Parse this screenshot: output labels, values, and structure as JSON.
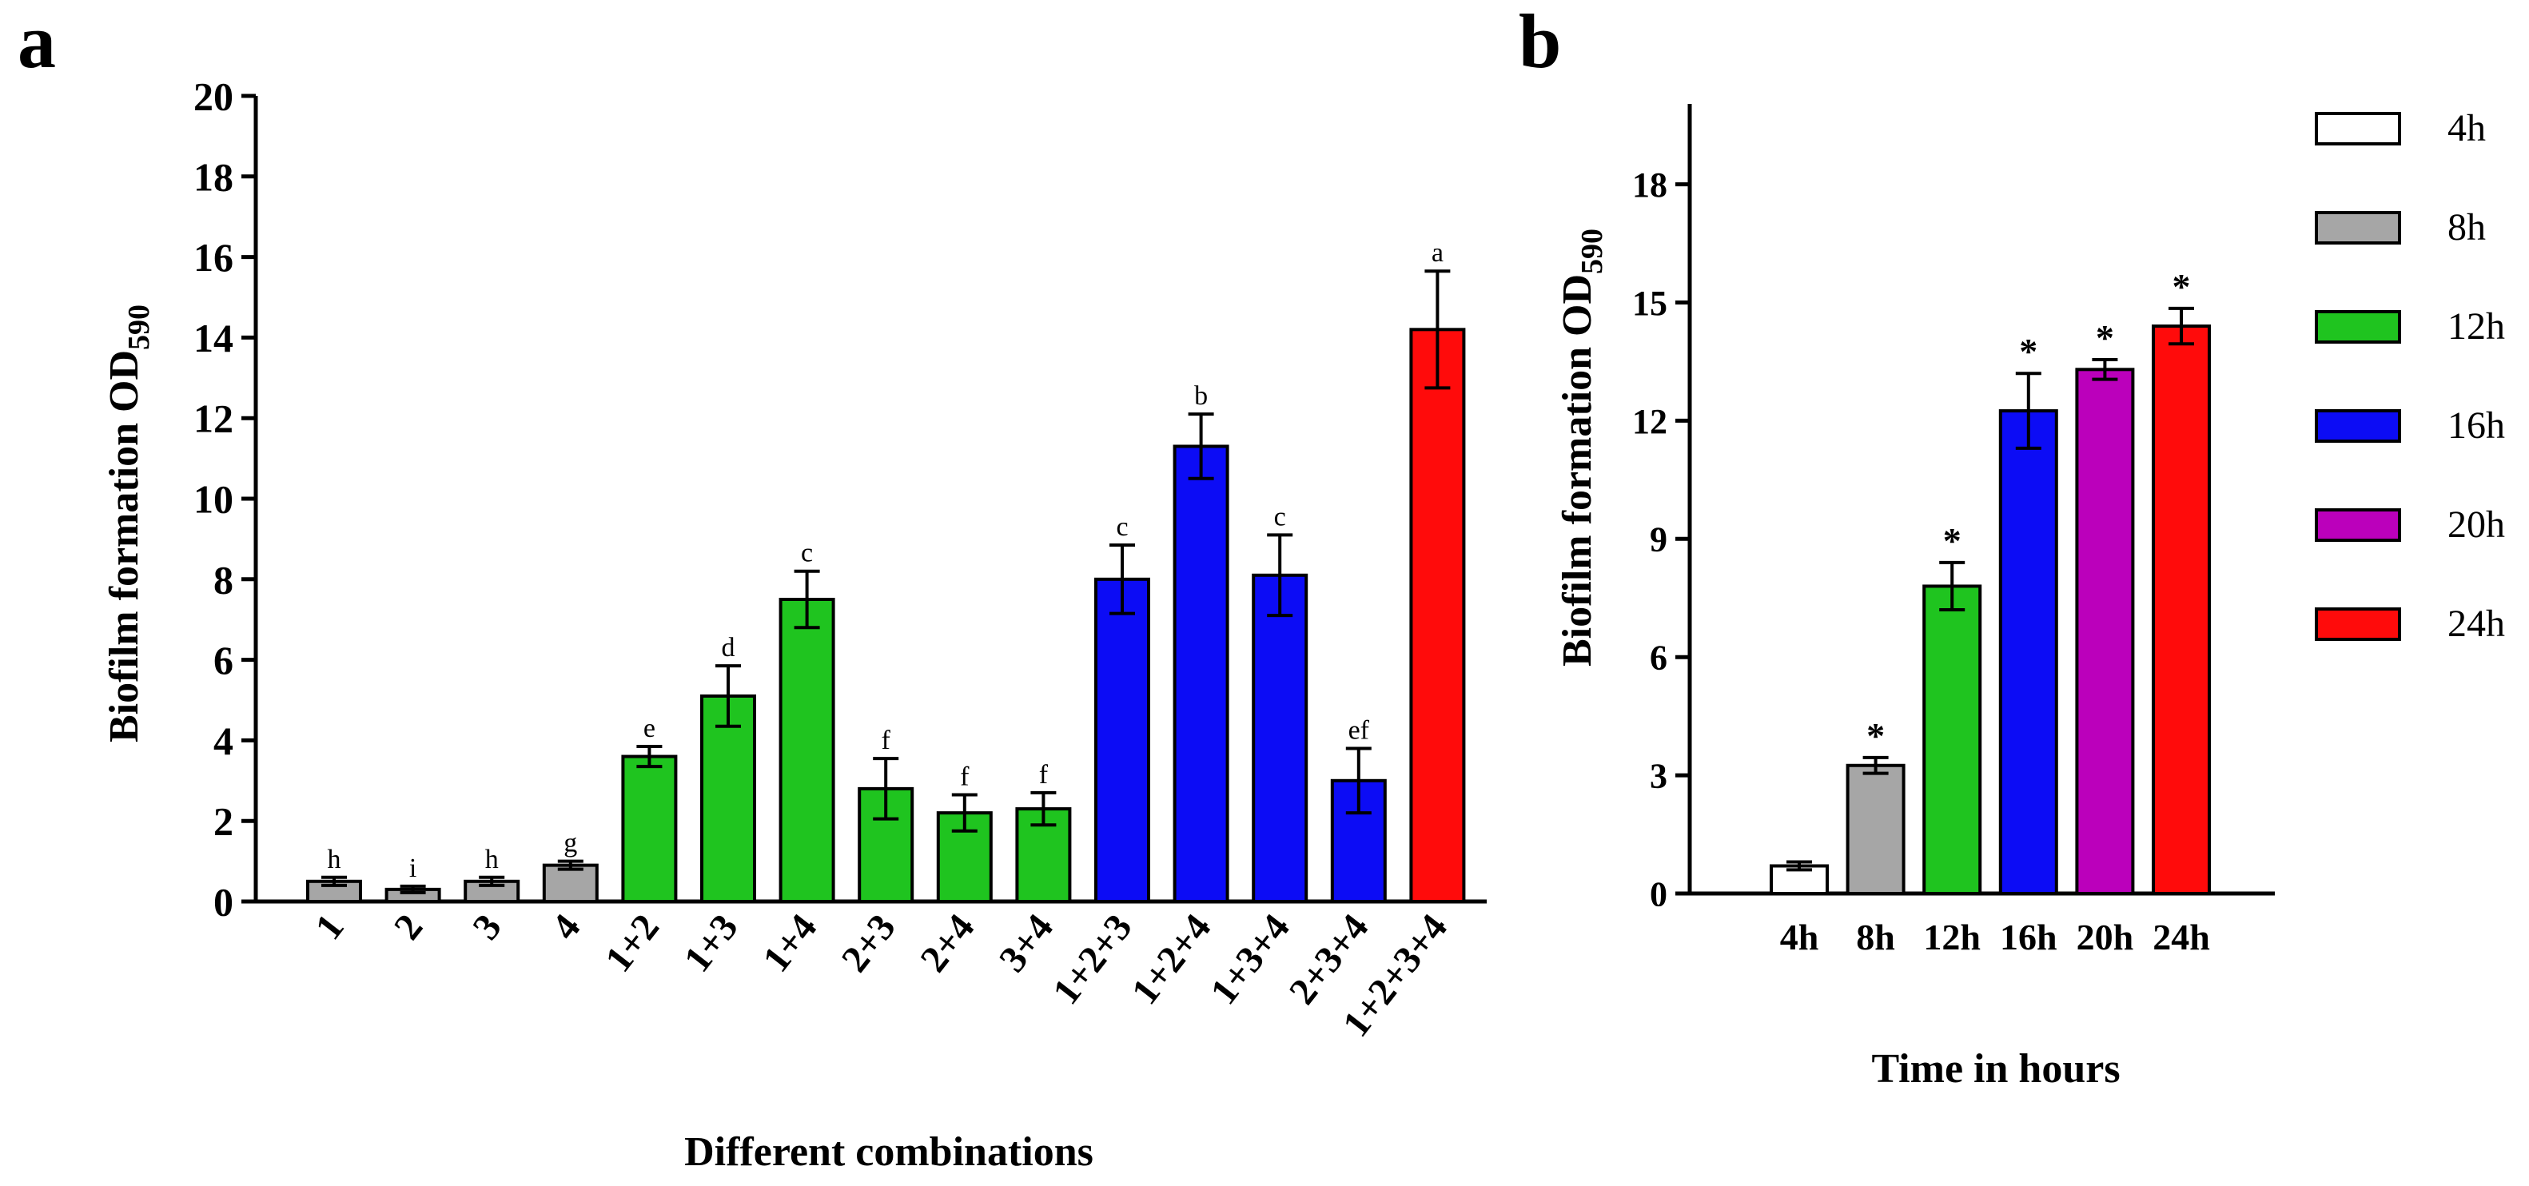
{
  "chart_data": [
    {
      "panel": "a",
      "type": "bar",
      "ylabel_main": "Biofilm formation OD",
      "ylabel_sub": "590",
      "xlabel": "Different combinations",
      "ylim": [
        0,
        20
      ],
      "yticks": [
        "0",
        "2",
        "4",
        "6",
        "8",
        "10",
        "12",
        "14",
        "16",
        "18",
        "20"
      ],
      "categories": [
        "1",
        "2",
        "3",
        "4",
        "1+2",
        "1+3",
        "1+4",
        "2+3",
        "2+4",
        "3+4",
        "1+2+3",
        "1+2+4",
        "1+3+4",
        "2+3+4",
        "1+2+3+4"
      ],
      "values": [
        0.5,
        0.3,
        0.5,
        0.9,
        3.6,
        5.1,
        7.5,
        2.8,
        2.2,
        2.3,
        8.0,
        11.3,
        8.1,
        3.0,
        14.2
      ],
      "errors": [
        0.1,
        0.08,
        0.1,
        0.1,
        0.25,
        0.75,
        0.7,
        0.75,
        0.45,
        0.4,
        0.85,
        0.8,
        1.0,
        0.8,
        1.45
      ],
      "significance": [
        "h",
        "i",
        "h",
        "g",
        "e",
        "d",
        "c",
        "f",
        "f",
        "f",
        "c",
        "b",
        "c",
        "ef",
        "a"
      ],
      "colors": [
        "#a6a6a6",
        "#a6a6a6",
        "#a6a6a6",
        "#a6a6a6",
        "#1fc41f",
        "#1fc41f",
        "#1fc41f",
        "#1fc41f",
        "#1fc41f",
        "#1fc41f",
        "#0c0cf5",
        "#0c0cf5",
        "#0c0cf5",
        "#0c0cf5",
        "#ff0b0b"
      ]
    },
    {
      "panel": "b",
      "type": "bar",
      "ylabel_main": "Biofilm formation OD",
      "ylabel_sub": "590",
      "xlabel": "Time in hours",
      "ylim": [
        0,
        20
      ],
      "yticks": [
        "0",
        "3",
        "6",
        "9",
        "12",
        "15",
        "18"
      ],
      "categories": [
        "4h",
        "8h",
        "12h",
        "16h",
        "20h",
        "24h"
      ],
      "values": [
        0.7,
        3.25,
        7.8,
        12.25,
        13.3,
        14.4
      ],
      "errors": [
        0.1,
        0.2,
        0.6,
        0.95,
        0.25,
        0.45
      ],
      "significance": [
        "",
        "*",
        "*",
        "*",
        "*",
        "*"
      ],
      "colors": [
        "#ffffff",
        "#a6a6a6",
        "#1fc41f",
        "#0c0cf5",
        "#bb00bb",
        "#ff0b0b"
      ],
      "legend": [
        {
          "label": "4h",
          "color": "#ffffff"
        },
        {
          "label": "8h",
          "color": "#a6a6a6"
        },
        {
          "label": "12h",
          "color": "#1fc41f"
        },
        {
          "label": "16h",
          "color": "#0c0cf5"
        },
        {
          "label": "20h",
          "color": "#bb00bb"
        },
        {
          "label": "24h",
          "color": "#ff0b0b"
        }
      ]
    }
  ]
}
